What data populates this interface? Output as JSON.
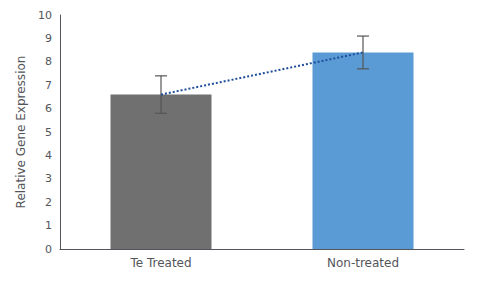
{
  "chart_data": {
    "type": "bar",
    "categories": [
      "Te Treated",
      "Non-treated"
    ],
    "ylabel": "Relative Gene Expression",
    "ylim": [
      0,
      10
    ],
    "yticks": [
      0,
      1,
      2,
      3,
      4,
      5,
      6,
      7,
      8,
      9,
      10
    ],
    "grid": false,
    "series": [
      {
        "type": "bar",
        "colors": [
          "#707070",
          "#5b9bd5"
        ],
        "values": [
          6.6,
          8.4
        ],
        "errors": [
          0.8,
          0.7
        ]
      },
      {
        "type": "line",
        "color": "#1f4e9c",
        "line_style": "dotted",
        "values": [
          6.6,
          8.4
        ]
      }
    ]
  }
}
